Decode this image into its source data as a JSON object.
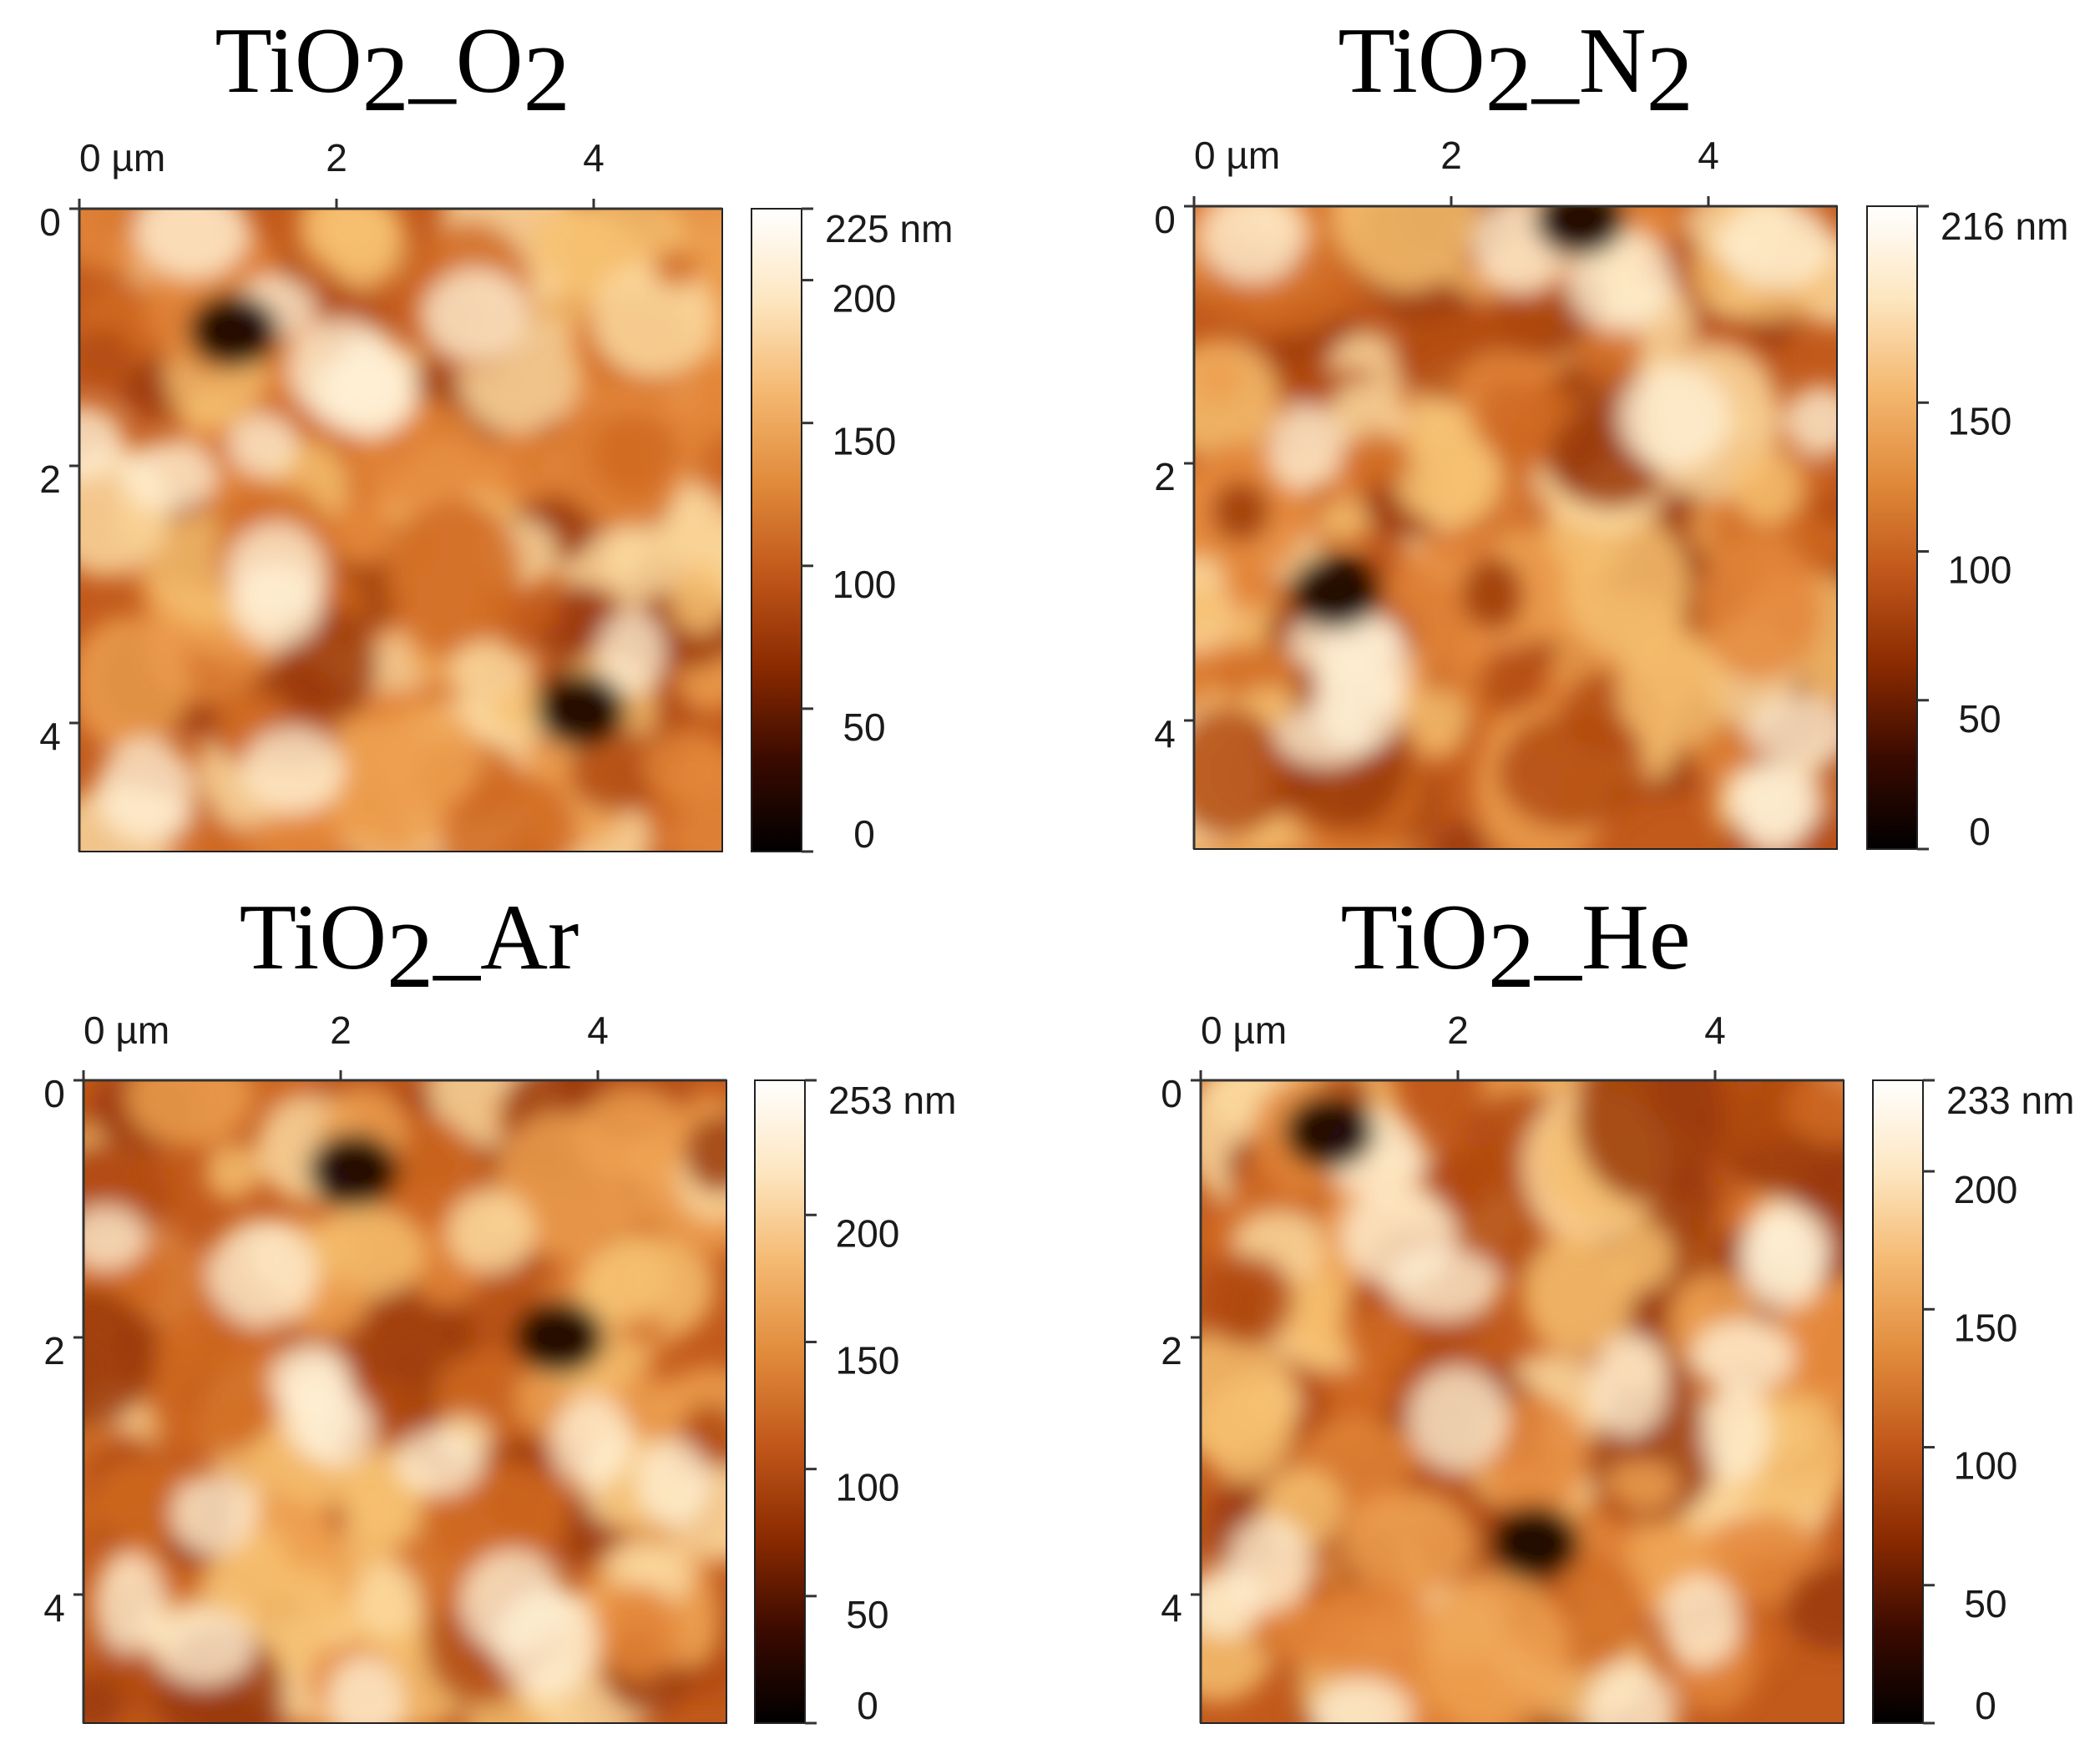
{
  "chart_data": [
    {
      "type": "heatmap",
      "title": "TiO2_O2",
      "title_main": "TiO",
      "title_sub": "2",
      "title_tail": "_O",
      "title_sub2": "2",
      "x_unit_label": "0 µm",
      "xticks": [
        "2",
        "4"
      ],
      "yticks": [
        "0",
        "2",
        "4"
      ],
      "xlim_um": [
        0,
        5
      ],
      "ylim_um": [
        0,
        5
      ],
      "colorbar": {
        "max_label": "225 nm",
        "min_nm": 0,
        "max_nm": 225,
        "ticks": [
          0,
          50,
          100,
          150,
          200
        ]
      },
      "colormap": [
        "#000000",
        "#3a0a00",
        "#8a2a00",
        "#c0561a",
        "#e08a3a",
        "#f4b870",
        "#fde6c0",
        "#ffffff"
      ],
      "seed": 11,
      "dark_spots": [
        [
          1.2,
          0.95
        ],
        [
          3.9,
          3.9
        ]
      ]
    },
    {
      "type": "heatmap",
      "title": "TiO2_N2",
      "title_main": "TiO",
      "title_sub": "2",
      "title_tail": "_N",
      "title_sub2": "2",
      "x_unit_label": "0 µm",
      "xticks": [
        "2",
        "4"
      ],
      "yticks": [
        "0",
        "2",
        "4"
      ],
      "xlim_um": [
        0,
        5
      ],
      "ylim_um": [
        0,
        5
      ],
      "colorbar": {
        "max_label": "216 nm",
        "min_nm": 0,
        "max_nm": 216,
        "ticks": [
          0,
          50,
          100,
          150
        ]
      },
      "colormap": [
        "#000000",
        "#3a0a00",
        "#8a2a00",
        "#c0561a",
        "#e08a3a",
        "#f4b870",
        "#fde6c0",
        "#ffffff"
      ],
      "seed": 23,
      "dark_spots": [
        [
          3.0,
          0.1
        ],
        [
          1.1,
          3.0
        ]
      ]
    },
    {
      "type": "heatmap",
      "title": "TiO2_Ar",
      "title_main": "TiO",
      "title_sub": "2",
      "title_tail": "_Ar",
      "title_sub2": "",
      "x_unit_label": "0 µm",
      "xticks": [
        "2",
        "4"
      ],
      "yticks": [
        "0",
        "2",
        "4"
      ],
      "xlim_um": [
        0,
        5
      ],
      "ylim_um": [
        0,
        5
      ],
      "colorbar": {
        "max_label": "253 nm",
        "min_nm": 0,
        "max_nm": 253,
        "ticks": [
          0,
          50,
          100,
          150,
          200
        ]
      },
      "colormap": [
        "#000000",
        "#3a0a00",
        "#8a2a00",
        "#c0561a",
        "#e08a3a",
        "#f4b870",
        "#fde6c0",
        "#ffffff"
      ],
      "seed": 37,
      "dark_spots": [
        [
          2.1,
          0.7
        ],
        [
          3.7,
          2.0
        ]
      ]
    },
    {
      "type": "heatmap",
      "title": "TiO2_He",
      "title_main": "TiO",
      "title_sub": "2",
      "title_tail": "_He",
      "title_sub2": "",
      "x_unit_label": "0 µm",
      "xticks": [
        "2",
        "4"
      ],
      "yticks": [
        "0",
        "2",
        "4"
      ],
      "xlim_um": [
        0,
        5
      ],
      "ylim_um": [
        0,
        5
      ],
      "colorbar": {
        "max_label": "233 nm",
        "min_nm": 0,
        "max_nm": 233,
        "ticks": [
          0,
          50,
          100,
          150,
          200
        ]
      },
      "colormap": [
        "#000000",
        "#3a0a00",
        "#8a2a00",
        "#c0561a",
        "#e08a3a",
        "#f4b870",
        "#fde6c0",
        "#ffffff"
      ],
      "seed": 53,
      "dark_spots": [
        [
          1.0,
          0.4
        ],
        [
          2.6,
          3.6
        ]
      ]
    }
  ]
}
